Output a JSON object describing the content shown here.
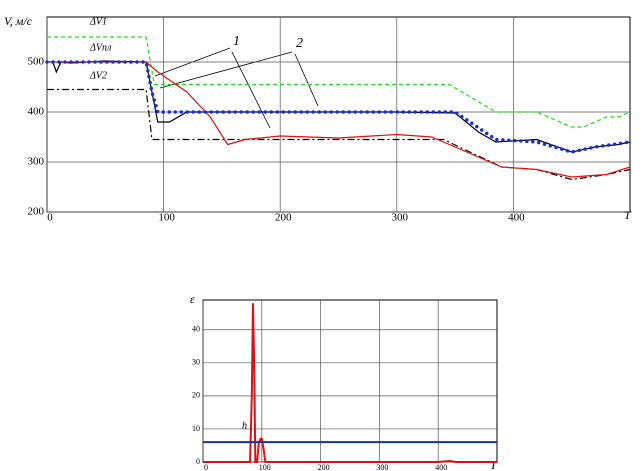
{
  "chart_data": [
    {
      "type": "line",
      "ylabel": "V, м/с",
      "xlabel": "T",
      "annotations": [
        "1",
        "2"
      ],
      "xlim": [
        0,
        500
      ],
      "xticks": [
        0,
        100,
        200,
        300,
        400
      ],
      "ylim": [
        200,
        590
      ],
      "yticks": [
        200,
        300,
        400,
        500
      ],
      "grid": true,
      "series": [
        {
          "name": "ΔV1",
          "color": "#22dd22",
          "dash": "dashed",
          "x": [
            0,
            85,
            92,
            100,
            345,
            385,
            420,
            450,
            460,
            480,
            490,
            500
          ],
          "values": [
            550,
            550,
            455,
            455,
            455,
            400,
            400,
            370,
            370,
            390,
            390,
            400
          ]
        },
        {
          "name": "ΔVпл",
          "color": "#000000",
          "dash": "solid",
          "x": [
            0,
            5,
            8,
            12,
            20,
            50,
            85,
            90,
            95,
            105,
            120,
            200,
            300,
            350,
            370,
            385,
            420,
            450,
            470,
            490,
            500
          ],
          "values": [
            500,
            500,
            480,
            500,
            498,
            502,
            500,
            440,
            380,
            380,
            400,
            400,
            400,
            398,
            360,
            340,
            345,
            320,
            330,
            335,
            340
          ]
        },
        {
          "name": "ΔV2",
          "color": "#000000",
          "dash": "dashdot",
          "x": [
            0,
            85,
            90,
            340,
            390,
            420,
            450,
            480,
            500
          ],
          "values": [
            445,
            445,
            345,
            345,
            290,
            285,
            265,
            275,
            285
          ]
        },
        {
          "color": "#dd1111",
          "dash": "solid",
          "x": [
            0,
            85,
            95,
            120,
            140,
            155,
            170,
            200,
            250,
            300,
            330,
            360,
            390,
            420,
            450,
            480,
            500
          ],
          "values": [
            500,
            500,
            480,
            440,
            390,
            335,
            345,
            352,
            348,
            355,
            350,
            320,
            290,
            285,
            270,
            275,
            290
          ]
        },
        {
          "color": "#1a2fd0",
          "dash": "dotted",
          "x": [
            0,
            85,
            90,
            95,
            105,
            200,
            350,
            385,
            420,
            450,
            470,
            500
          ],
          "values": [
            500,
            500,
            440,
            400,
            400,
            400,
            400,
            345,
            340,
            320,
            330,
            340
          ]
        }
      ]
    },
    {
      "type": "line",
      "ylabel": "ε",
      "xlabel": "T",
      "xlim": [
        0,
        500
      ],
      "xticks": [
        0,
        100,
        200,
        300,
        400
      ],
      "ylim": [
        0,
        49
      ],
      "yticks": [
        0,
        10,
        20,
        30,
        40
      ],
      "grid": true,
      "series": [
        {
          "color": "#dd1111",
          "dash": "solid",
          "x": [
            0,
            80,
            83,
            85,
            87,
            89,
            92,
            95,
            98,
            100,
            103,
            106,
            120,
            400,
            420,
            430,
            500
          ],
          "values": [
            0,
            0,
            20,
            48,
            30,
            0,
            0,
            6,
            7,
            7,
            4,
            0,
            0,
            0,
            0.3,
            0,
            0
          ]
        },
        {
          "name": "h",
          "color": "#1a2fa0",
          "dash": "solid",
          "x": [
            0,
            500
          ],
          "values": [
            6,
            6
          ]
        }
      ]
    }
  ]
}
